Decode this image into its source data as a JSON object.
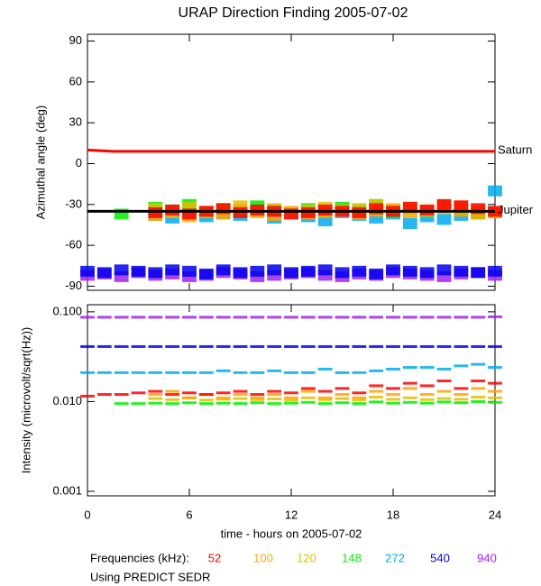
{
  "title": "URAP Direction Finding  2005-07-02",
  "legend": {
    "title": "Frequencies (kHz):"
  },
  "note": "Using PREDICT SEDR",
  "chart_data": [
    {
      "type": "scatter",
      "ylabel": "Azimuthal angle (deg)",
      "xlim": [
        0,
        24
      ],
      "xticks": [
        0,
        6,
        12,
        18,
        24
      ],
      "ylim": [
        -93,
        95
      ],
      "yticks": [
        -90,
        -60,
        -30,
        0,
        30,
        60,
        90
      ],
      "x": [
        0,
        1,
        2,
        3,
        4,
        5,
        6,
        7,
        8,
        9,
        10,
        11,
        12,
        13,
        14,
        15,
        16,
        17,
        18,
        19,
        20,
        21,
        22,
        23,
        24
      ],
      "series": [
        {
          "name": "940",
          "color": "#a020f0",
          "values": [
            -82,
            -81,
            -83,
            -80,
            -82,
            -81,
            -83,
            -82,
            -80,
            -81,
            -83,
            -82,
            -81,
            -80,
            -82,
            -83,
            -81,
            -82,
            -80,
            -81,
            -82,
            -83,
            -81,
            -80,
            -82
          ]
        },
        {
          "name": "540",
          "color": "#0000ee",
          "values": [
            -79,
            -80,
            -78,
            -79,
            -80,
            -78,
            -79,
            -81,
            -78,
            -80,
            -79,
            -78,
            -80,
            -79,
            -78,
            -80,
            -79,
            -81,
            -78,
            -79,
            -80,
            -78,
            -79,
            -80,
            -79
          ]
        },
        {
          "name": "272",
          "color": "#00aaee",
          "values": [
            null,
            null,
            null,
            null,
            -38,
            -40,
            -36,
            -39,
            -37,
            -38,
            -35,
            -40,
            -37,
            -39,
            -42,
            -36,
            -38,
            -40,
            -37,
            -44,
            -39,
            -41,
            -38,
            -36,
            -20
          ]
        },
        {
          "name": "148",
          "color": "#00ee00",
          "values": [
            null,
            null,
            -37,
            null,
            -32,
            -34,
            -30,
            -36,
            -33,
            -35,
            -31,
            -34,
            -36,
            -33,
            -35,
            -32,
            -34,
            -30,
            -36,
            -33,
            -35,
            -31,
            -34,
            -37,
            -36
          ]
        },
        {
          "name": "120",
          "color": "#e0c000",
          "values": [
            null,
            null,
            null,
            null,
            -33,
            -35,
            -32,
            -36,
            -34,
            -31,
            -35,
            -33,
            -36,
            -34,
            -32,
            -35,
            -33,
            -30,
            -34,
            -32,
            -35,
            -33,
            -31,
            -34,
            -36
          ]
        },
        {
          "name": "100",
          "color": "#ffa500",
          "values": [
            null,
            null,
            null,
            null,
            -38,
            -36,
            -39,
            -35,
            -37,
            -34,
            -36,
            -38,
            -35,
            -37,
            -36,
            -34,
            -37,
            -35,
            -33,
            -36,
            -34,
            -32,
            -35,
            -37,
            -36
          ]
        },
        {
          "name": "52",
          "color": "#ff0000",
          "values": [
            null,
            null,
            null,
            null,
            -36,
            -34,
            -37,
            -35,
            -33,
            -36,
            -34,
            -35,
            -37,
            -36,
            -34,
            -35,
            -36,
            -33,
            -35,
            -32,
            -34,
            -30,
            -31,
            -33,
            -35
          ]
        }
      ],
      "lines": [
        {
          "name": "Saturn",
          "color": "#ff0000",
          "x": [
            0,
            1.5,
            24
          ],
          "values": [
            10,
            9,
            9
          ]
        },
        {
          "name": "Jupiter",
          "color": "#000000",
          "x": [
            0,
            24
          ],
          "values": [
            -35,
            -35
          ]
        }
      ]
    },
    {
      "type": "scatter",
      "ylabel": "Intensity (microvolt/sqrt(Hz))",
      "xlabel": "time - hours on 2005-07-02",
      "log_y": true,
      "xlim": [
        0,
        24
      ],
      "xticks": [
        0,
        6,
        12,
        18,
        24
      ],
      "ylim": [
        0.00089,
        0.12
      ],
      "yticks": [
        0.001,
        {
          "value": 0.01,
          "label": "0.010"
        },
        {
          "value": 0.1,
          "label": "0.100"
        }
      ],
      "x": [
        0,
        1,
        2,
        3,
        4,
        5,
        6,
        7,
        8,
        9,
        10,
        11,
        12,
        13,
        14,
        15,
        16,
        17,
        18,
        19,
        20,
        21,
        22,
        23,
        24
      ],
      "series": [
        {
          "values": [
            0.087,
            0.087,
            0.087,
            0.087,
            0.087,
            0.087,
            0.087,
            0.087,
            0.087,
            0.087,
            0.087,
            0.087,
            0.087,
            0.087,
            0.087,
            0.087,
            0.087,
            0.087,
            0.087,
            0.087,
            0.087,
            0.087,
            0.087,
            0.087,
            0.088
          ]
        },
        {
          "values": [
            0.041,
            0.041,
            0.041,
            0.041,
            0.041,
            0.041,
            0.041,
            0.041,
            0.041,
            0.041,
            0.041,
            0.041,
            0.041,
            0.041,
            0.041,
            0.041,
            0.041,
            0.041,
            0.041,
            0.041,
            0.041,
            0.041,
            0.041,
            0.041,
            0.041
          ]
        },
        {
          "values": [
            0.021,
            0.021,
            0.021,
            0.021,
            0.021,
            0.021,
            0.021,
            0.021,
            0.022,
            0.021,
            0.021,
            0.022,
            0.021,
            0.021,
            0.023,
            0.021,
            0.021,
            0.022,
            0.023,
            0.024,
            0.024,
            0.023,
            0.025,
            0.026,
            0.024
          ]
        },
        {
          "values": [
            null,
            null,
            0.0095,
            0.0095,
            0.0096,
            0.0095,
            0.0097,
            0.0095,
            0.0096,
            0.0095,
            0.0097,
            0.0095,
            0.0096,
            0.0098,
            0.0095,
            0.0097,
            0.0095,
            0.0099,
            0.0096,
            0.0098,
            0.0096,
            0.0099,
            0.0097,
            0.01,
            0.0098
          ]
        },
        {
          "values": [
            null,
            null,
            null,
            null,
            0.0108,
            0.0105,
            0.011,
            0.0104,
            0.0106,
            0.0108,
            0.0105,
            0.0107,
            0.0104,
            0.011,
            0.0105,
            0.0108,
            0.0104,
            0.0112,
            0.0106,
            0.011,
            0.0105,
            0.0108,
            0.0106,
            0.0112,
            0.011
          ]
        },
        {
          "values": [
            null,
            null,
            null,
            null,
            0.012,
            0.013,
            0.011,
            0.012,
            0.011,
            0.012,
            0.011,
            0.012,
            0.011,
            0.013,
            0.011,
            0.012,
            0.011,
            0.013,
            0.012,
            0.014,
            0.012,
            0.013,
            0.012,
            0.014,
            0.013
          ]
        },
        {
          "values": [
            0.0115,
            0.012,
            0.012,
            0.0125,
            0.013,
            0.012,
            0.0125,
            0.012,
            0.0125,
            0.013,
            0.012,
            0.013,
            0.0125,
            0.014,
            0.013,
            0.014,
            0.0125,
            0.015,
            0.014,
            0.016,
            0.015,
            0.017,
            0.014,
            0.017,
            0.016
          ]
        }
      ]
    }
  ]
}
